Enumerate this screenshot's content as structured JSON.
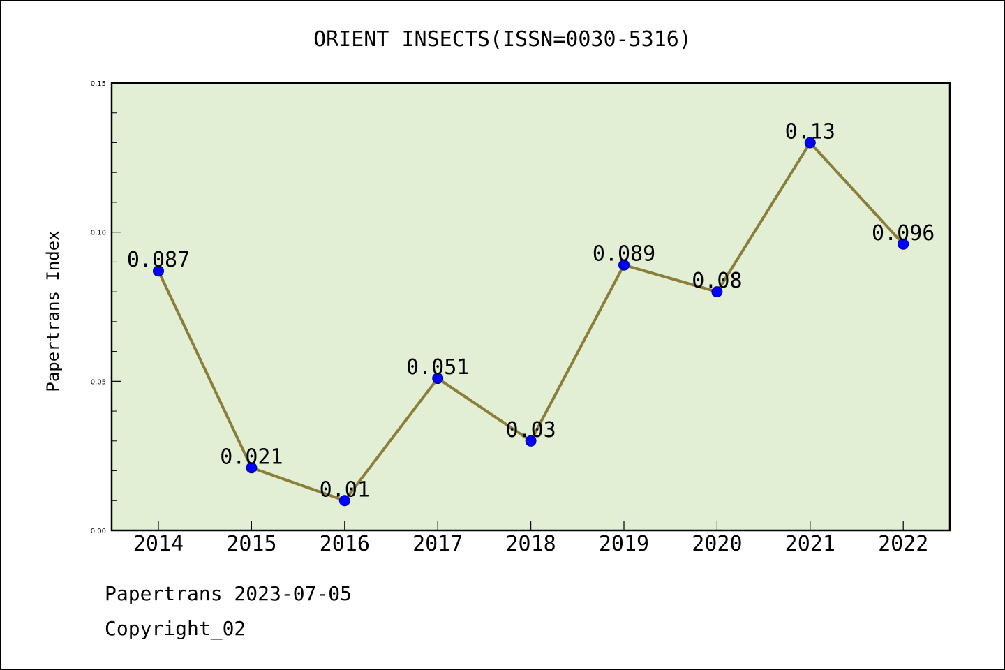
{
  "chart_data": {
    "type": "line",
    "title": "ORIENT INSECTS(ISSN=0030-5316)",
    "xlabel": "",
    "ylabel": "Papertrans Index",
    "categories": [
      "2014",
      "2015",
      "2016",
      "2017",
      "2018",
      "2019",
      "2020",
      "2021",
      "2022"
    ],
    "series": [
      {
        "values": [
          0.087,
          0.021,
          0.01,
          0.051,
          0.03,
          0.089,
          0.08,
          0.13,
          0.096
        ],
        "labels": [
          "0.087",
          "0.021",
          "0.01",
          "0.051",
          "0.03",
          "0.089",
          "0.08",
          "0.13",
          "0.096"
        ],
        "line_color": "#8b7d3a",
        "marker_color": "#0000ff"
      }
    ],
    "ylim": [
      0,
      0.15
    ],
    "y_ticks": [
      "0.00",
      "0.05",
      "0.10",
      "0.15"
    ],
    "y_tick_values": [
      0,
      0.05,
      0.1,
      0.15
    ],
    "grid": false,
    "plot_background": "#e2efd5"
  },
  "footer": {
    "line1": "Papertrans 2023-07-05",
    "line2": "Copyright_02"
  }
}
